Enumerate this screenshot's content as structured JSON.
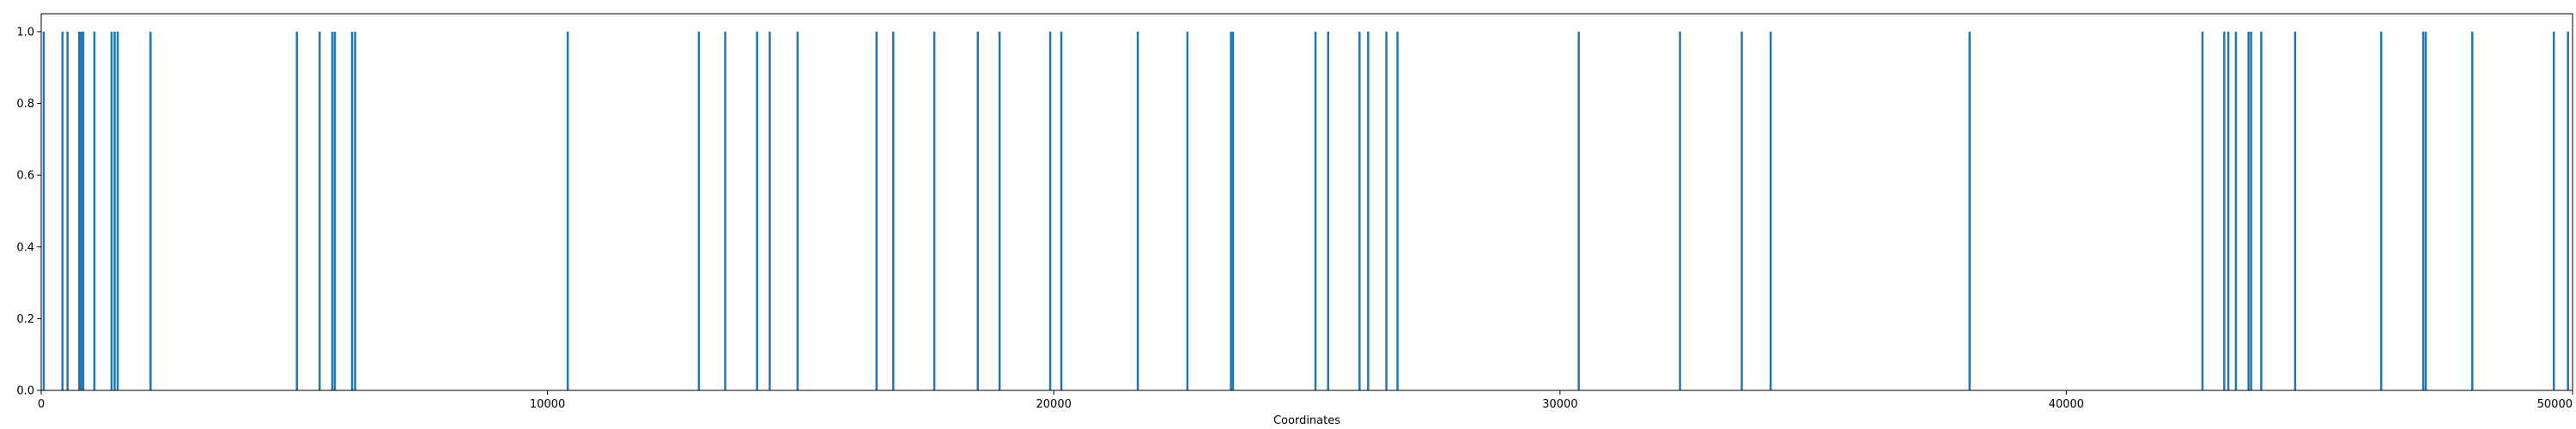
{
  "chart_data": {
    "type": "bar",
    "title": "",
    "xlabel": "Coordinates",
    "ylabel": "",
    "xlim": [
      0,
      50000
    ],
    "ylim": [
      0,
      1.05
    ],
    "grid": false,
    "bar_color": "#1f77b4",
    "x_ticks": [
      {
        "value": 0,
        "label": "0"
      },
      {
        "value": 10000,
        "label": "10000"
      },
      {
        "value": 20000,
        "label": "20000"
      },
      {
        "value": 30000,
        "label": "30000"
      },
      {
        "value": 40000,
        "label": "40000"
      },
      {
        "value": 50000,
        "label": "50000"
      }
    ],
    "y_ticks": [
      {
        "value": 0.0,
        "label": "0.0"
      },
      {
        "value": 0.2,
        "label": "0.2"
      },
      {
        "value": 0.4,
        "label": "0.4"
      },
      {
        "value": 0.6,
        "label": "0.6"
      },
      {
        "value": 0.8,
        "label": "0.8"
      },
      {
        "value": 1.0,
        "label": "1.0"
      }
    ],
    "x": [
      50,
      420,
      520,
      750,
      790,
      830,
      1050,
      1390,
      1450,
      1510,
      2160,
      5050,
      5500,
      5750,
      5800,
      6140,
      6200,
      10400,
      12990,
      13510,
      14140,
      14390,
      14940,
      16500,
      16830,
      17640,
      18500,
      18930,
      19930,
      20150,
      21660,
      22640,
      23500,
      23540,
      25170,
      25420,
      26040,
      26210,
      26570,
      26790,
      30370,
      32370,
      33590,
      34160,
      38090,
      42690,
      43120,
      43200,
      43350,
      43600,
      43650,
      43850,
      44520,
      46220,
      47050,
      47100,
      48020,
      49630,
      49910
    ],
    "values": [
      1,
      1,
      1,
      1,
      1,
      1,
      1,
      1,
      1,
      1,
      1,
      1,
      1,
      1,
      1,
      1,
      1,
      1,
      1,
      1,
      1,
      1,
      1,
      1,
      1,
      1,
      1,
      1,
      1,
      1,
      1,
      1,
      1,
      1,
      1,
      1,
      1,
      1,
      1,
      1,
      1,
      1,
      1,
      1,
      1,
      1,
      1,
      1,
      1,
      1,
      1,
      1,
      1,
      1,
      1,
      1,
      1,
      1,
      1
    ]
  }
}
